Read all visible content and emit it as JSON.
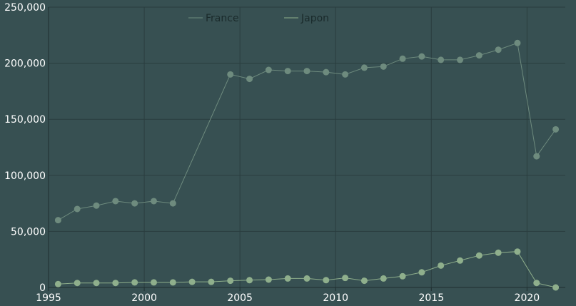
{
  "chart_data": {
    "type": "line",
    "title": "",
    "xlabel": "",
    "ylabel": "",
    "xlim": [
      1995,
      2022
    ],
    "ylim": [
      0,
      250000
    ],
    "x_ticks": [
      1995,
      2000,
      2005,
      2010,
      2015,
      2020
    ],
    "x_tick_labels": [
      "1995",
      "2000",
      "2005",
      "2010",
      "2015",
      "2020"
    ],
    "y_ticks": [
      0,
      50000,
      100000,
      150000,
      200000,
      250000
    ],
    "y_tick_labels": [
      "0",
      "50,000",
      "100,000",
      "150,000",
      "200,000",
      "250,000"
    ],
    "grid": true,
    "legend_position": "top-center",
    "x": [
      1995.5,
      1996.5,
      1997.5,
      1998.5,
      1999.5,
      2000.5,
      2001.5,
      2002.5,
      2003.5,
      2004.5,
      2005.5,
      2006.5,
      2007.5,
      2008.5,
      2009.5,
      2010.5,
      2011.5,
      2012.5,
      2013.5,
      2014.5,
      2015.5,
      2016.5,
      2017.5,
      2018.5,
      2019.5,
      2020.5,
      2021.5
    ],
    "series": [
      {
        "name": "France",
        "color": "#6e8b7e",
        "values": [
          60000,
          70000,
          73000,
          77000,
          75000,
          77000,
          75000,
          null,
          null,
          190000,
          186000,
          194000,
          193000,
          193000,
          192000,
          190000,
          196000,
          197000,
          204000,
          206000,
          203000,
          203000,
          207000,
          212000,
          218000,
          117000,
          141000
        ]
      },
      {
        "name": "Japon",
        "color": "#8faf8c",
        "values": [
          3000,
          4000,
          4000,
          4000,
          4500,
          4500,
          4500,
          5000,
          5000,
          6000,
          6500,
          7000,
          8000,
          8000,
          6500,
          8500,
          6000,
          8000,
          10000,
          13500,
          19500,
          24000,
          28500,
          31000,
          32000,
          4000,
          0
        ]
      }
    ]
  }
}
